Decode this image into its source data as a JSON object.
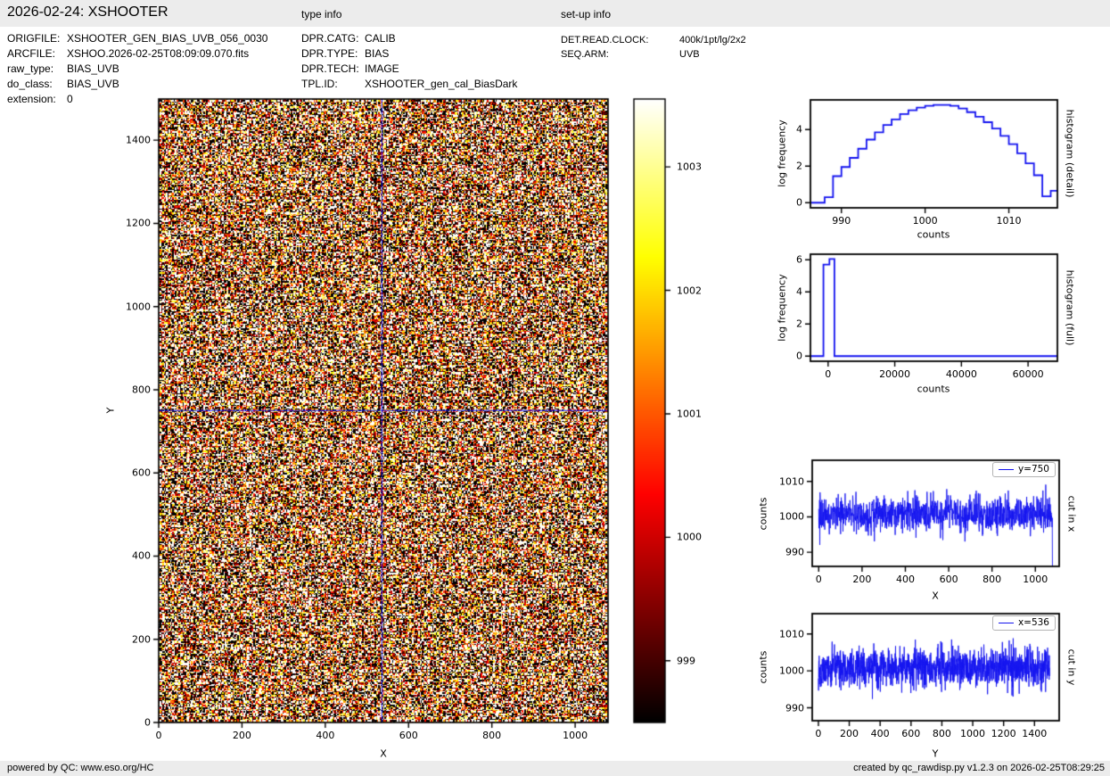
{
  "header": {
    "title": "2026-02-24: XSHOOTER",
    "type_info_label": "type info",
    "setup_info_label": "set-up info"
  },
  "file_info": {
    "rows": [
      {
        "label": "ORIGFILE:",
        "value": "XSHOOTER_GEN_BIAS_UVB_056_0030"
      },
      {
        "label": "ARCFILE:",
        "value": "XSHOO.2026-02-25T08:09:09.070.fits"
      },
      {
        "label": "raw_type:",
        "value": "BIAS_UVB"
      },
      {
        "label": "do_class:",
        "value": "BIAS_UVB"
      },
      {
        "label": "extension:",
        "value": "0"
      }
    ]
  },
  "type_info": {
    "rows": [
      {
        "label": "DPR.CATG:",
        "value": "CALIB"
      },
      {
        "label": "DPR.TYPE:",
        "value": "BIAS"
      },
      {
        "label": "DPR.TECH:",
        "value": "IMAGE"
      },
      {
        "label": "TPL.ID:",
        "value": "XSHOOTER_gen_cal_BiasDark"
      }
    ]
  },
  "setup_info": {
    "rows": [
      {
        "label": "DET.READ.CLOCK:",
        "value": "400k/1pt/lg/2x2"
      },
      {
        "label": "SEQ.ARM:",
        "value": "UVB"
      }
    ]
  },
  "footer": {
    "left": "powered by QC: www.eso.org/HC",
    "right": "created by qc_rawdisp.py v1.2.3 on 2026-02-25T08:29:25"
  },
  "colors": {
    "line_blue": "#1414ef",
    "bar_gray": "#ececec",
    "spine_black": "#000000"
  },
  "chart_data": [
    {
      "id": "main-image",
      "type": "heatmap",
      "xlabel": "X",
      "ylabel": "Y",
      "xlim": [
        0,
        1079
      ],
      "ylim": [
        0,
        1499
      ],
      "xticks": [
        0,
        200,
        400,
        600,
        800,
        1000
      ],
      "yticks": [
        0,
        200,
        400,
        600,
        800,
        1000,
        1200,
        1400
      ],
      "colormap": "hot",
      "vmin": 998.5,
      "vmax": 1003.55,
      "noise_mean": 1001,
      "noise_sigma": 4.0,
      "crosshair_x": 536,
      "crosshair_y": 750
    },
    {
      "id": "colorbar",
      "type": "colorbar",
      "colormap": "hot",
      "vmin": 998.5,
      "vmax": 1003.55,
      "ticks": [
        999,
        1000,
        1001,
        1002,
        1003
      ]
    },
    {
      "id": "histogram-detail",
      "type": "bar",
      "right_label": "histogram (detail)",
      "xlabel": "counts",
      "ylabel": "log frequency",
      "xlim": [
        986.3,
        1015.8
      ],
      "ylim": [
        -0.28,
        5.62
      ],
      "xticks": [
        990,
        1000,
        1010
      ],
      "yticks": [
        0,
        2,
        4
      ],
      "bin_edges": [
        987,
        988,
        989,
        990,
        991,
        992,
        993,
        994,
        995,
        996,
        997,
        998,
        999,
        1000,
        1001,
        1002,
        1003,
        1004,
        1005,
        1006,
        1007,
        1008,
        1009,
        1010,
        1011,
        1012,
        1013,
        1014,
        1015,
        1016
      ],
      "log_frequency": [
        0,
        0.3,
        1.45,
        1.95,
        2.45,
        2.95,
        3.45,
        3.85,
        4.25,
        4.55,
        4.85,
        5.05,
        5.2,
        5.3,
        5.35,
        5.35,
        5.3,
        5.15,
        4.95,
        4.7,
        4.4,
        4.05,
        3.65,
        3.2,
        2.7,
        2.15,
        1.5,
        0.35,
        0.65
      ]
    },
    {
      "id": "histogram-full",
      "type": "bar",
      "right_label": "histogram (full)",
      "xlabel": "counts",
      "ylabel": "log frequency",
      "xlim": [
        -5300,
        68800
      ],
      "ylim": [
        -0.32,
        6.35
      ],
      "xticks": [
        0,
        20000,
        40000,
        60000
      ],
      "yticks": [
        0,
        2,
        4,
        6
      ],
      "bin_edges": [
        -1400,
        400,
        1900
      ],
      "log_frequency": [
        5.7,
        6.05
      ]
    },
    {
      "id": "cut-x",
      "type": "line",
      "legend": "y=750",
      "right_label": "cut in x",
      "xlabel": "X",
      "ylabel": "counts",
      "xlim": [
        -30,
        1110
      ],
      "ylim": [
        986,
        1016
      ],
      "xticks": [
        0,
        200,
        400,
        600,
        800,
        1000
      ],
      "yticks": [
        990,
        1000,
        1010
      ],
      "n_points": 1080,
      "mean": 1000.8,
      "sigma": 2.6,
      "last_value": 986
    },
    {
      "id": "cut-y",
      "type": "line",
      "legend": "x=536",
      "right_label": "cut in y",
      "xlabel": "Y",
      "ylabel": "counts",
      "xlim": [
        -40,
        1560
      ],
      "ylim": [
        986.5,
        1015.5
      ],
      "xticks": [
        0,
        200,
        400,
        600,
        800,
        1000,
        1200,
        1400
      ],
      "yticks": [
        990,
        1000,
        1010
      ],
      "n_points": 1500,
      "mean": 1000.8,
      "sigma": 2.6
    }
  ]
}
